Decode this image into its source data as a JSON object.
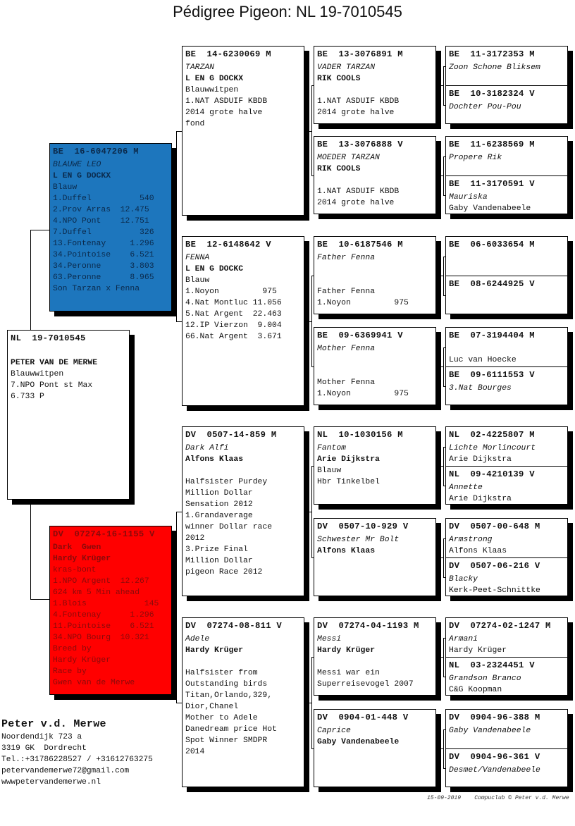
{
  "title": "Pédigree Pigeon: NL  19-7010545",
  "colors": {
    "sire_box": "#1d76bd",
    "dam_box": "#ff0000"
  },
  "boxes": [
    {
      "id": "subject",
      "lines": [
        {
          "t": "NL  19-7010545",
          "s": "hd"
        },
        {
          "t": "",
          "s": ""
        },
        {
          "t": "PETER VAN DE MERWE",
          "s": "bd"
        },
        {
          "t": "Blauwwitpen",
          "s": ""
        },
        {
          "t": "7.NPO Pont st Max",
          "s": ""
        },
        {
          "t": "6.733 P",
          "s": ""
        }
      ]
    },
    {
      "id": "sire",
      "color": "blue",
      "lines": [
        {
          "t": "BE  16-6047206 M",
          "s": "hd"
        },
        {
          "t": "BLAUWE LEO",
          "s": "it"
        },
        {
          "t": "L EN G DOCKX",
          "s": "bd"
        },
        {
          "t": "Blauw",
          "s": ""
        },
        {
          "t": "1.Duffel          540",
          "s": ""
        },
        {
          "t": "2.Prov Arras  12.475",
          "s": ""
        },
        {
          "t": "4.NPO Pont    12.751",
          "s": ""
        },
        {
          "t": "7.Duffel          326",
          "s": ""
        },
        {
          "t": "13.Fontenay     1.296",
          "s": ""
        },
        {
          "t": "34.Pointoise    6.521",
          "s": ""
        },
        {
          "t": "34.Peronne      3.803",
          "s": ""
        },
        {
          "t": "63.Peronne      8.965",
          "s": ""
        },
        {
          "t": "Son Tarzan x Fenna",
          "s": ""
        }
      ]
    },
    {
      "id": "dam",
      "color": "red",
      "lines": [
        {
          "t": "DV  07274-16-1155 V",
          "s": "hd"
        },
        {
          "t": "Dark  Gwen",
          "s": "bd"
        },
        {
          "t": "Hardy Krüger",
          "s": "bd"
        },
        {
          "t": "kras-bont",
          "s": ""
        },
        {
          "t": "1.NPO Argent  12.267",
          "s": ""
        },
        {
          "t": "624 km 5 Min ahead",
          "s": ""
        },
        {
          "t": "1.Blois            145",
          "s": ""
        },
        {
          "t": "4.Fontenay      1.296",
          "s": ""
        },
        {
          "t": "11.Pointoise    6.521",
          "s": ""
        },
        {
          "t": "34.NPO Bourg  10.321",
          "s": ""
        },
        {
          "t": "Breed by",
          "s": ""
        },
        {
          "t": "Hardy Krüger",
          "s": ""
        },
        {
          "t": "Race by",
          "s": ""
        },
        {
          "t": "Gwen van de Merwe",
          "s": ""
        }
      ]
    },
    {
      "id": "ss",
      "lines": [
        {
          "t": "BE  14-6230069 M",
          "s": "hd"
        },
        {
          "t": "TARZAN",
          "s": "it"
        },
        {
          "t": "L EN G DOCKX",
          "s": "bd"
        },
        {
          "t": "Blauwwitpen",
          "s": ""
        },
        {
          "t": "1.NAT ASDUIF KBDB",
          "s": ""
        },
        {
          "t": "2014 grote halve",
          "s": ""
        },
        {
          "t": "fond",
          "s": ""
        }
      ]
    },
    {
      "id": "sd",
      "lines": [
        {
          "t": "BE  12-6148642 V",
          "s": "hd"
        },
        {
          "t": "FENNA",
          "s": "it"
        },
        {
          "t": "L EN G DOCKC",
          "s": "bd"
        },
        {
          "t": "Blauw",
          "s": ""
        },
        {
          "t": "1.Noyon         975",
          "s": ""
        },
        {
          "t": "4.Nat Montluc 11.056",
          "s": ""
        },
        {
          "t": "5.Nat Argent  22.463",
          "s": ""
        },
        {
          "t": "12.IP Vierzon  9.004",
          "s": ""
        },
        {
          "t": "66.Nat Argent  3.671",
          "s": ""
        }
      ]
    },
    {
      "id": "ds",
      "lines": [
        {
          "t": "DV  0507-14-859 M",
          "s": "hd"
        },
        {
          "t": "Dark Alfi",
          "s": "it"
        },
        {
          "t": "Alfons Klaas",
          "s": "bd"
        },
        {
          "t": "",
          "s": ""
        },
        {
          "t": "Halfsister Purdey",
          "s": ""
        },
        {
          "t": "Million Dollar",
          "s": ""
        },
        {
          "t": "Sensation 2012",
          "s": ""
        },
        {
          "t": "1.Grandaverage",
          "s": ""
        },
        {
          "t": "winner Dollar race",
          "s": ""
        },
        {
          "t": "2012",
          "s": ""
        },
        {
          "t": "3.Prize Final",
          "s": ""
        },
        {
          "t": "Million Dollar",
          "s": ""
        },
        {
          "t": "pigeon Race 2012",
          "s": ""
        }
      ]
    },
    {
      "id": "dd",
      "lines": [
        {
          "t": "DV  07274-08-811 V",
          "s": "hd"
        },
        {
          "t": "Adele",
          "s": "it"
        },
        {
          "t": "Hardy Krüger",
          "s": "bd"
        },
        {
          "t": "",
          "s": ""
        },
        {
          "t": "Halfsister from",
          "s": ""
        },
        {
          "t": "Outstanding birds",
          "s": ""
        },
        {
          "t": "Titan,Orlando,329,",
          "s": ""
        },
        {
          "t": "Dior,Chanel",
          "s": ""
        },
        {
          "t": "Mother to Adele",
          "s": ""
        },
        {
          "t": "Danedream price Hot",
          "s": ""
        },
        {
          "t": "Spot Winner SMDPR",
          "s": ""
        },
        {
          "t": "2014",
          "s": ""
        }
      ]
    },
    {
      "id": "sss",
      "lines": [
        {
          "t": "BE  13-3076891 M",
          "s": "hd"
        },
        {
          "t": "VADER TARZAN",
          "s": "it"
        },
        {
          "t": "RIK COOLS",
          "s": "bd"
        },
        {
          "t": "",
          "s": ""
        },
        {
          "t": "1.NAT ASDUIF KBDB",
          "s": ""
        },
        {
          "t": "2014 grote halve",
          "s": ""
        }
      ]
    },
    {
      "id": "ssd",
      "lines": [
        {
          "t": "BE  13-3076888 V",
          "s": "hd"
        },
        {
          "t": "MOEDER TARZAN",
          "s": "it"
        },
        {
          "t": "RIK COOLS",
          "s": "bd"
        },
        {
          "t": "",
          "s": ""
        },
        {
          "t": "1.NAT ASDUIF KBDB",
          "s": ""
        },
        {
          "t": "2014 grote halve",
          "s": ""
        }
      ]
    },
    {
      "id": "sds",
      "lines": [
        {
          "t": "BE  10-6187546 M",
          "s": "hd"
        },
        {
          "t": "Father Fenna",
          "s": "it"
        },
        {
          "t": "",
          "s": ""
        },
        {
          "t": "",
          "s": ""
        },
        {
          "t": "Father Fenna",
          "s": ""
        },
        {
          "t": "1.Noyon         975",
          "s": ""
        }
      ]
    },
    {
      "id": "sdd",
      "lines": [
        {
          "t": "BE  09-6369941 V",
          "s": "hd"
        },
        {
          "t": "Mother Fenna",
          "s": "it"
        },
        {
          "t": "",
          "s": ""
        },
        {
          "t": "",
          "s": ""
        },
        {
          "t": "Mother Fenna",
          "s": ""
        },
        {
          "t": "1.Noyon         975",
          "s": ""
        }
      ]
    },
    {
      "id": "dss",
      "lines": [
        {
          "t": "NL  10-1030156 M",
          "s": "hd"
        },
        {
          "t": "Fantom",
          "s": "it"
        },
        {
          "t": "Arie Dijkstra",
          "s": "bd"
        },
        {
          "t": "Blauw",
          "s": ""
        },
        {
          "t": "Hbr Tinkelbel",
          "s": ""
        }
      ]
    },
    {
      "id": "dsd",
      "lines": [
        {
          "t": "DV  0507-10-929 V",
          "s": "hd"
        },
        {
          "t": "Schwester Mr Bolt",
          "s": "it"
        },
        {
          "t": "Alfons Klaas",
          "s": "bd"
        }
      ]
    },
    {
      "id": "dds",
      "lines": [
        {
          "t": "DV  07274-04-1193 M",
          "s": "hd"
        },
        {
          "t": "Messi",
          "s": "it"
        },
        {
          "t": "Hardy Krüger",
          "s": "bd"
        },
        {
          "t": "",
          "s": ""
        },
        {
          "t": "Messi war ein",
          "s": ""
        },
        {
          "t": "Superreisevogel 2007",
          "s": ""
        }
      ]
    },
    {
      "id": "ddd",
      "lines": [
        {
          "t": "DV  0904-01-448 V",
          "s": "hd"
        },
        {
          "t": "Caprice",
          "s": "it"
        },
        {
          "t": "Gaby Vandenabeele",
          "s": "bd"
        }
      ]
    },
    {
      "id": "g4_1",
      "lines": [
        {
          "t": "BE  11-3172353 M",
          "s": "hd"
        },
        {
          "t": "Zoon Schone Bliksem",
          "s": "it"
        }
      ]
    },
    {
      "id": "g4_2",
      "lines": [
        {
          "t": "BE  10-3182324 V",
          "s": "hd"
        },
        {
          "t": "Dochter Pou-Pou",
          "s": "it"
        }
      ]
    },
    {
      "id": "g4_3",
      "lines": [
        {
          "t": "BE  11-6238569 M",
          "s": "hd"
        },
        {
          "t": "Propere Rik",
          "s": "it"
        }
      ]
    },
    {
      "id": "g4_4",
      "lines": [
        {
          "t": "BE  11-3170591 V",
          "s": "hd"
        },
        {
          "t": "Mauriska",
          "s": "it"
        },
        {
          "t": "Gaby Vandenabeele",
          "s": ""
        }
      ]
    },
    {
      "id": "g4_5",
      "lines": [
        {
          "t": "BE  06-6033654 M",
          "s": "hd"
        }
      ]
    },
    {
      "id": "g4_6",
      "lines": [
        {
          "t": "BE  08-6244925 V",
          "s": "hd"
        }
      ]
    },
    {
      "id": "g4_7",
      "lines": [
        {
          "t": "BE  07-3194404 M",
          "s": "hd"
        },
        {
          "t": "",
          "s": ""
        },
        {
          "t": "Luc van Hoecke",
          "s": ""
        }
      ]
    },
    {
      "id": "g4_8",
      "lines": [
        {
          "t": "BE  09-6111553 V",
          "s": "hd"
        },
        {
          "t": "3.Nat Bourges",
          "s": "it"
        }
      ]
    },
    {
      "id": "g4_9",
      "lines": [
        {
          "t": "NL  02-4225807 M",
          "s": "hd"
        },
        {
          "t": "Lichte Morlincourt",
          "s": "it"
        },
        {
          "t": "Arie Dijkstra",
          "s": ""
        }
      ]
    },
    {
      "id": "g4_10",
      "lines": [
        {
          "t": "NL  09-4210139 V",
          "s": "hd"
        },
        {
          "t": "Annette",
          "s": "it"
        },
        {
          "t": "Arie Dijkstra",
          "s": ""
        }
      ]
    },
    {
      "id": "g4_11",
      "lines": [
        {
          "t": "DV  0507-00-648 M",
          "s": "hd"
        },
        {
          "t": "Armstrong",
          "s": "it"
        },
        {
          "t": "Alfons Klaas",
          "s": ""
        }
      ]
    },
    {
      "id": "g4_12",
      "lines": [
        {
          "t": "DV  0507-06-216 V",
          "s": "hd"
        },
        {
          "t": "Blacky",
          "s": "it"
        },
        {
          "t": "Kerk-Peet-Schnittke",
          "s": ""
        }
      ]
    },
    {
      "id": "g4_13",
      "lines": [
        {
          "t": "DV  07274-02-1247 M",
          "s": "hd"
        },
        {
          "t": "Armani",
          "s": "it"
        },
        {
          "t": "Hardy Krüger",
          "s": ""
        }
      ]
    },
    {
      "id": "g4_14",
      "lines": [
        {
          "t": "NL  03-2324451 V",
          "s": "hd"
        },
        {
          "t": "Grandson Branco",
          "s": "it"
        },
        {
          "t": "C&G Koopman",
          "s": ""
        }
      ]
    },
    {
      "id": "g4_15",
      "lines": [
        {
          "t": "DV  0904-96-388 M",
          "s": "hd"
        },
        {
          "t": "Gaby Vandenabeele",
          "s": "it"
        }
      ]
    },
    {
      "id": "g4_16",
      "lines": [
        {
          "t": "DV  0904-96-361 V",
          "s": "hd"
        },
        {
          "t": "Desmet/Vandenabeele",
          "s": "it"
        }
      ]
    }
  ],
  "owner": {
    "name": "Peter v.d. Merwe",
    "address": "Noordendijk 723 a",
    "city": "3319 GK  Dordrecht",
    "phone": "Tel.:+31786228527 / +31612763275",
    "email": "petervandemerwe72@gmail.com",
    "website": "wwwpetervandemerwe.nl"
  },
  "footer": {
    "date": "15-09-2019",
    "credit": "Compuclub © Peter v.d. Merwe"
  }
}
